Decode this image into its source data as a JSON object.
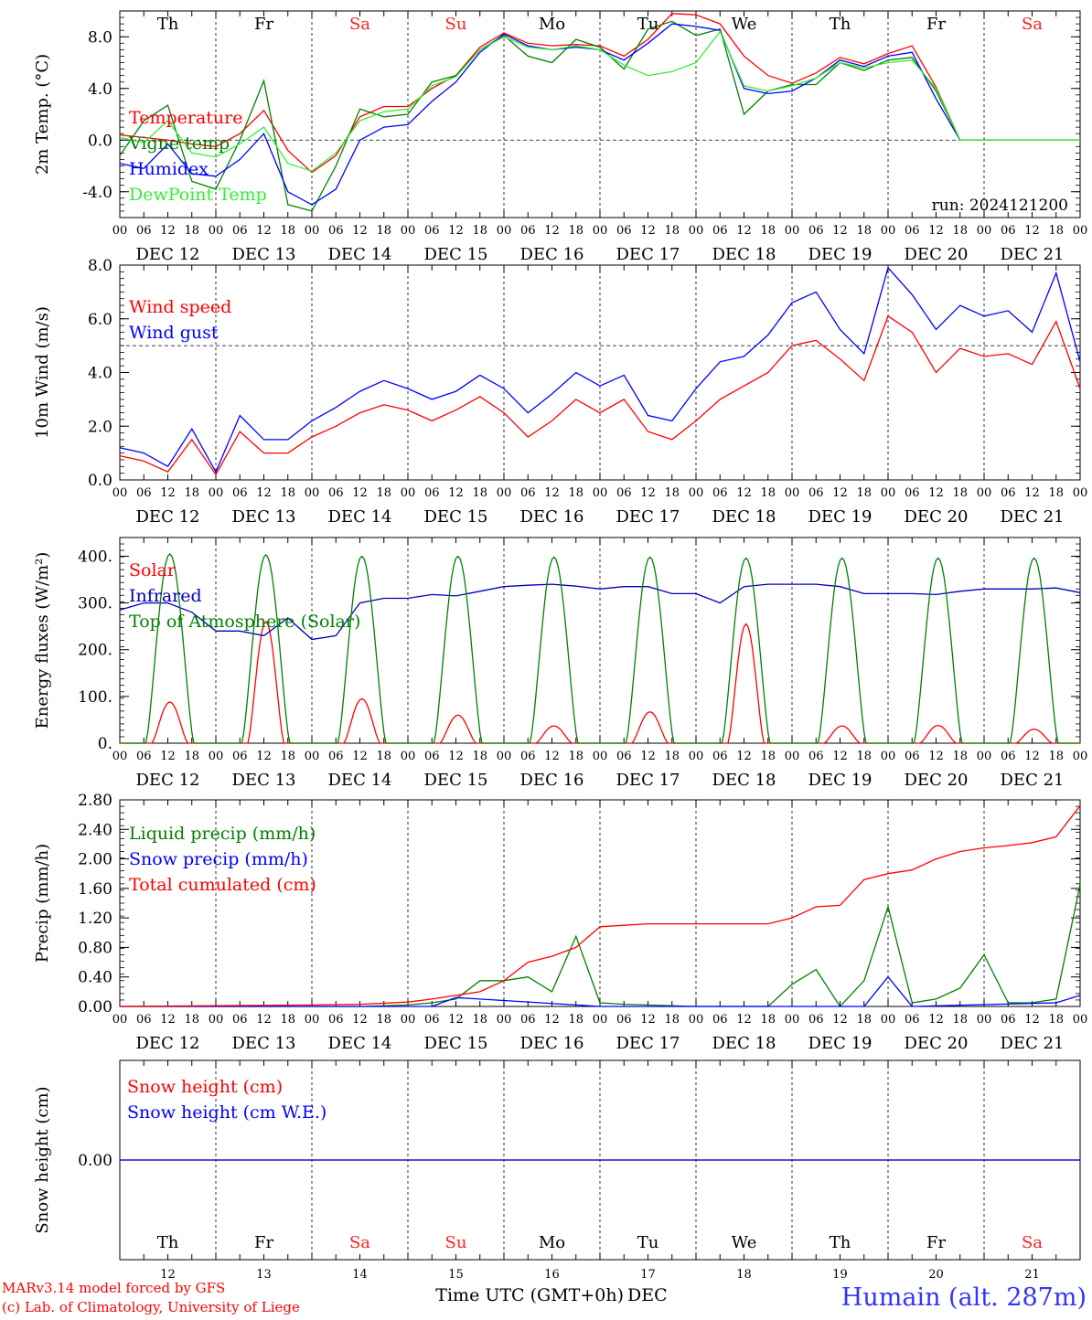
{
  "days": [
    "12",
    "13",
    "14",
    "15",
    "16",
    "17",
    "18",
    "19",
    "20",
    "21"
  ],
  "day_labels": [
    "DEC 12",
    "DEC 13",
    "DEC 14",
    "DEC 15",
    "DEC 16",
    "DEC 17",
    "DEC 18",
    "DEC 19",
    "DEC 20",
    "DEC 21"
  ],
  "weekdays": [
    "Th",
    "Fr",
    "Sa",
    "Su",
    "Mo",
    "Tu",
    "We",
    "Th",
    "Fr",
    "Sa"
  ],
  "weekend_color": "#ff2020",
  "hour_ticks": [
    "00",
    "06",
    "12",
    "18"
  ],
  "final_hour": "00",
  "run_label": "run: 2024121200",
  "footer": {
    "model_line1": "MARv3.14 model forced by GFS",
    "model_line2": "(c) Lab. of Climatology, University of Liege",
    "xlabel": "Time UTC (GMT+0h)",
    "month": "DEC",
    "station": "Humain (alt. 287m)"
  },
  "chart_data": [
    {
      "type": "line",
      "ylabel": "2m Temp. (°C)",
      "ylim": [
        -6.0,
        10.0
      ],
      "yticks": [
        "-4.0",
        "0.0",
        "4.0",
        "8.0"
      ],
      "reference_line": 0.0,
      "x_unit": "hours since DEC 12 00 UTC",
      "series": [
        {
          "name": "Temperature",
          "color": "#ff0000",
          "x": [
            0,
            6,
            12,
            18,
            24,
            30,
            36,
            42,
            48,
            54,
            60,
            66,
            72,
            78,
            84,
            90,
            96,
            102,
            108,
            114,
            120,
            126,
            132,
            138,
            144,
            150,
            156,
            162,
            168,
            174,
            180,
            186,
            192,
            198,
            204,
            210,
            216,
            222,
            228,
            234,
            240
          ],
          "y": [
            0.4,
            0.2,
            0.0,
            -0.3,
            -0.5,
            0.5,
            2.3,
            -0.8,
            -2.5,
            -1.2,
            1.8,
            2.6,
            2.6,
            4.0,
            5.0,
            7.2,
            8.3,
            7.5,
            7.3,
            7.4,
            7.3,
            6.5,
            7.8,
            9.8,
            9.7,
            9.0,
            6.5,
            5.0,
            4.4,
            5.2,
            6.4,
            5.9,
            6.7,
            7.3,
            4.1,
            0,
            0,
            0,
            0,
            0,
            0
          ]
        },
        {
          "name": "Vigne temp",
          "color": "#008000",
          "x": [
            0,
            6,
            12,
            18,
            24,
            30,
            36,
            42,
            48,
            54,
            60,
            66,
            72,
            78,
            84,
            90,
            96,
            102,
            108,
            114,
            120,
            126,
            132,
            138,
            144,
            150,
            156,
            162,
            168,
            174,
            180,
            186,
            192,
            198,
            204,
            210,
            216,
            222,
            228,
            234,
            240
          ],
          "y": [
            -1.2,
            1.5,
            2.7,
            -3.2,
            -3.8,
            0.0,
            4.6,
            -5.0,
            -5.5,
            -2.0,
            2.4,
            1.8,
            2.0,
            4.5,
            5.0,
            7.0,
            8.1,
            6.5,
            6.0,
            7.8,
            7.2,
            5.5,
            8.6,
            9.2,
            8.1,
            8.6,
            2.0,
            3.8,
            4.3,
            4.3,
            6.0,
            5.4,
            6.2,
            6.4,
            3.8,
            0,
            0,
            0,
            0,
            0,
            0
          ]
        },
        {
          "name": "Humidex",
          "color": "#0000ff",
          "x": [
            0,
            6,
            12,
            18,
            24,
            30,
            36,
            42,
            48,
            54,
            60,
            66,
            72,
            78,
            84,
            90,
            96,
            102,
            108,
            114,
            120,
            126,
            132,
            138,
            144,
            150,
            156,
            162,
            168,
            174,
            180,
            186,
            192,
            198,
            204,
            210,
            216,
            222,
            228,
            234,
            240
          ],
          "y": [
            -1.8,
            -2.2,
            -0.3,
            -2.6,
            -2.8,
            -1.5,
            0.5,
            -4.0,
            -5.0,
            -3.8,
            0.0,
            1.0,
            1.2,
            3.0,
            4.5,
            6.8,
            8.2,
            7.3,
            7.0,
            7.2,
            7.0,
            6.2,
            7.5,
            9.0,
            8.8,
            8.5,
            4.0,
            3.6,
            3.8,
            4.8,
            6.2,
            5.7,
            6.5,
            6.8,
            3.2,
            0,
            0,
            0,
            0,
            0,
            0
          ]
        },
        {
          "name": "DewPoint Temp",
          "color": "#33ee33",
          "x": [
            0,
            6,
            12,
            18,
            24,
            30,
            36,
            42,
            48,
            54,
            60,
            66,
            72,
            78,
            84,
            90,
            96,
            102,
            108,
            114,
            120,
            126,
            132,
            138,
            144,
            150,
            156,
            162,
            168,
            174,
            180,
            186,
            192,
            198,
            204,
            210,
            216,
            222,
            228,
            234,
            240
          ],
          "y": [
            0.2,
            -0.2,
            1.5,
            -1.0,
            -1.3,
            -0.3,
            1.0,
            -1.8,
            -2.4,
            -1.0,
            1.5,
            2.2,
            2.4,
            4.2,
            4.9,
            7.0,
            8.0,
            7.2,
            7.0,
            7.3,
            7.0,
            5.8,
            5.0,
            5.3,
            6.0,
            8.4,
            4.2,
            3.8,
            4.2,
            4.8,
            6.0,
            5.6,
            6.0,
            6.2,
            4.0,
            0,
            0,
            0,
            0,
            0,
            0
          ]
        }
      ]
    },
    {
      "type": "line",
      "ylabel": "10m Wind (m/s)",
      "ylim": [
        0.0,
        8.0
      ],
      "yticks": [
        "0.0",
        "2.0",
        "4.0",
        "6.0",
        "8.0"
      ],
      "reference_line": 5.0,
      "x_unit": "hours since DEC 12 00 UTC",
      "series": [
        {
          "name": "Wind speed",
          "color": "#ff0000",
          "x": [
            0,
            6,
            12,
            18,
            24,
            30,
            36,
            42,
            48,
            54,
            60,
            66,
            72,
            78,
            84,
            90,
            96,
            102,
            108,
            114,
            120,
            126,
            132,
            138,
            144,
            150,
            156,
            162,
            168,
            174,
            180,
            186,
            192,
            198,
            204,
            210,
            216,
            222,
            228,
            234,
            240
          ],
          "y": [
            0.9,
            0.7,
            0.3,
            1.5,
            0.2,
            1.8,
            1.0,
            1.0,
            1.6,
            2.0,
            2.5,
            2.8,
            2.6,
            2.2,
            2.6,
            3.1,
            2.5,
            1.6,
            2.2,
            3.0,
            2.5,
            3.0,
            1.8,
            1.5,
            2.2,
            3.0,
            3.5,
            4.0,
            5.0,
            5.2,
            4.5,
            3.7,
            6.1,
            5.5,
            4.0,
            4.9,
            4.6,
            4.7,
            4.3,
            5.9,
            3.4
          ]
        },
        {
          "name": "Wind gust",
          "color": "#0000ff",
          "x": [
            0,
            6,
            12,
            18,
            24,
            30,
            36,
            42,
            48,
            54,
            60,
            66,
            72,
            78,
            84,
            90,
            96,
            102,
            108,
            114,
            120,
            126,
            132,
            138,
            144,
            150,
            156,
            162,
            168,
            174,
            180,
            186,
            192,
            198,
            204,
            210,
            216,
            222,
            228,
            234,
            240
          ],
          "y": [
            1.2,
            1.0,
            0.5,
            1.9,
            0.3,
            2.4,
            1.5,
            1.5,
            2.2,
            2.7,
            3.3,
            3.7,
            3.4,
            3.0,
            3.3,
            3.9,
            3.4,
            2.5,
            3.2,
            4.0,
            3.5,
            3.9,
            2.4,
            2.2,
            3.4,
            4.4,
            4.6,
            5.4,
            6.6,
            7.0,
            5.6,
            4.7,
            7.9,
            6.9,
            5.6,
            6.5,
            6.1,
            6.3,
            5.5,
            7.7,
            4.4
          ]
        }
      ]
    },
    {
      "type": "line",
      "ylabel": "Energy fluxes (W/m²)",
      "ylim": [
        0,
        440
      ],
      "yticks": [
        "0.",
        "100.",
        "200.",
        "300.",
        "400."
      ],
      "x_unit": "hours since DEC 12 00 UTC",
      "series": [
        {
          "name": "Solar",
          "color": "#ff0000",
          "days_peak": [
            88,
            260,
            95,
            60,
            37,
            67,
            255,
            37,
            38,
            30
          ]
        },
        {
          "name": "Infrared",
          "color": "#0000bb",
          "x": [
            0,
            6,
            12,
            18,
            24,
            30,
            36,
            42,
            48,
            54,
            60,
            66,
            72,
            78,
            84,
            90,
            96,
            102,
            108,
            114,
            120,
            126,
            132,
            138,
            144,
            150,
            156,
            162,
            168,
            174,
            180,
            186,
            192,
            198,
            204,
            210,
            216,
            222,
            228,
            234,
            240
          ],
          "y": [
            285,
            300,
            300,
            280,
            240,
            240,
            230,
            268,
            222,
            230,
            300,
            310,
            310,
            318,
            315,
            325,
            335,
            338,
            340,
            336,
            330,
            335,
            335,
            320,
            320,
            300,
            335,
            340,
            340,
            340,
            335,
            320,
            320,
            320,
            318,
            325,
            330,
            330,
            330,
            332,
            322
          ]
        },
        {
          "name": "Top of Atmosphere (Solar)",
          "color": "#008000",
          "days_peak": [
            405,
            403,
            400,
            400,
            398,
            398,
            396,
            396,
            396,
            396
          ]
        }
      ]
    },
    {
      "type": "line",
      "ylabel": "Precip (mm/h)",
      "ylim": [
        0.0,
        2.8
      ],
      "yticks": [
        "0.00",
        "0.40",
        "0.80",
        "1.20",
        "1.60",
        "2.00",
        "2.40",
        "2.80"
      ],
      "x_unit": "hours since DEC 12 00 UTC",
      "series": [
        {
          "name": "Liquid precip (mm/h)",
          "color": "#008000",
          "x": [
            0,
            24,
            48,
            60,
            72,
            78,
            84,
            90,
            96,
            102,
            108,
            114,
            120,
            126,
            132,
            144,
            162,
            168,
            174,
            180,
            186,
            192,
            198,
            204,
            210,
            216,
            222,
            228,
            234,
            240
          ],
          "y": [
            0,
            0,
            0,
            0,
            0.02,
            0.05,
            0.1,
            0.35,
            0.35,
            0.4,
            0.2,
            0.95,
            0.05,
            0.03,
            0.02,
            0,
            0,
            0.3,
            0.5,
            0.0,
            0.35,
            1.35,
            0.05,
            0.1,
            0.25,
            0.7,
            0.05,
            0.05,
            0.1,
            1.65
          ]
        },
        {
          "name": "Snow precip (mm/h)",
          "color": "#0000ff",
          "x": [
            0,
            78,
            84,
            120,
            186,
            192,
            198,
            234,
            240
          ],
          "y": [
            0,
            0,
            0.12,
            0,
            0,
            0.4,
            0,
            0.05,
            0.15
          ]
        },
        {
          "name": "Total cumulated (cm)",
          "color": "#ff0000",
          "x": [
            0,
            24,
            48,
            60,
            72,
            78,
            84,
            90,
            96,
            102,
            108,
            114,
            120,
            126,
            132,
            144,
            162,
            168,
            174,
            180,
            186,
            192,
            198,
            204,
            210,
            216,
            222,
            228,
            234,
            240
          ],
          "y": [
            0,
            0.01,
            0.02,
            0.03,
            0.06,
            0.1,
            0.15,
            0.2,
            0.35,
            0.6,
            0.68,
            0.8,
            1.08,
            1.1,
            1.12,
            1.12,
            1.12,
            1.2,
            1.35,
            1.37,
            1.72,
            1.8,
            1.85,
            2.0,
            2.1,
            2.15,
            2.18,
            2.22,
            2.3,
            2.72
          ]
        }
      ]
    },
    {
      "type": "line",
      "ylabel": "Snow height (cm)",
      "ylim": [
        -1.0,
        1.0
      ],
      "yticks": [
        "0.00"
      ],
      "x_unit": "hours since DEC 12 00 UTC",
      "series": [
        {
          "name": "Snow height (cm)",
          "color": "#ff0000",
          "x": [
            0,
            240
          ],
          "y": [
            0.0,
            0.0
          ]
        },
        {
          "name": "Snow height (cm W.E.)",
          "color": "#0000ff",
          "x": [
            0,
            240
          ],
          "y": [
            0.0,
            0.0
          ]
        }
      ]
    }
  ]
}
